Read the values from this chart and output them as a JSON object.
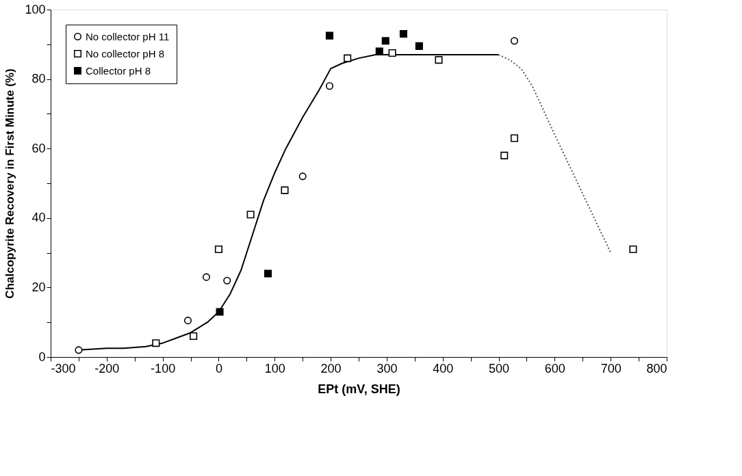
{
  "chart_data": {
    "type": "scatter",
    "xlabel": "EPt (mV, SHE)",
    "ylabel": "Chalcopyrite Recovery in First Minute (%)",
    "xlim": [
      -300,
      800
    ],
    "ylim": [
      0,
      100
    ],
    "xticks": [
      -300,
      {
        "value": -250,
        "label": null
      },
      -200,
      {
        "value": -150,
        "label": null
      },
      -100,
      {
        "value": -50,
        "label": null
      },
      0,
      {
        "value": 50,
        "label": null
      },
      100,
      {
        "value": 150,
        "label": null
      },
      200,
      {
        "value": 250,
        "label": null
      },
      300,
      {
        "value": 350,
        "label": null
      },
      400,
      {
        "value": 450,
        "label": null
      },
      500,
      {
        "value": 550,
        "label": null
      },
      600,
      {
        "value": 650,
        "label": null
      },
      700,
      {
        "value": 750,
        "label": null
      },
      800
    ],
    "yticks": [
      0,
      {
        "value": 10,
        "label": null
      },
      20,
      {
        "value": 30,
        "label": null
      },
      40,
      {
        "value": 50,
        "label": null
      },
      60,
      {
        "value": 70,
        "label": null
      },
      80,
      {
        "value": 90,
        "label": null
      },
      100
    ],
    "grid": false,
    "legend": "top left",
    "series": [
      {
        "name": "No collector pH 11",
        "type": "scatter",
        "marker": "circle",
        "color": "#ffffff",
        "x": [
          -250,
          -55,
          -22,
          15,
          150,
          198,
          528
        ],
        "values": [
          2,
          10.5,
          23,
          22,
          52,
          78,
          91
        ]
      },
      {
        "name": "No collector pH 8",
        "type": "scatter",
        "marker": "square",
        "color": "#ffffff",
        "x": [
          -112,
          -45,
          0,
          57,
          118,
          230,
          310,
          393,
          510,
          528,
          740
        ],
        "values": [
          4,
          6,
          31,
          41,
          48,
          86,
          87.5,
          85.5,
          58,
          63,
          31
        ]
      },
      {
        "name": "Collector pH 8",
        "type": "scatter",
        "marker": "square",
        "color": "#000000",
        "x": [
          2,
          88,
          198,
          287,
          298,
          330,
          358
        ],
        "values": [
          13,
          24,
          92.5,
          88,
          91,
          93,
          89.5
        ]
      },
      {
        "type": "line",
        "line_style": "solid",
        "color": "#000000",
        "x": [
          -250,
          -200,
          -170,
          -130,
          -100,
          -50,
          -20,
          0,
          20,
          40,
          60,
          80,
          100,
          120,
          150,
          180,
          200,
          220,
          250,
          280,
          320,
          400,
          500
        ],
        "values": [
          2,
          2.5,
          2.5,
          3,
          4,
          7,
          10,
          13,
          18,
          25,
          35,
          45,
          53,
          60,
          69,
          77,
          83,
          84.5,
          86,
          87,
          87,
          87,
          87
        ]
      },
      {
        "type": "line",
        "line_style": "dotted",
        "color": "#555555",
        "x": [
          500,
          520,
          540,
          560,
          600,
          650,
          700
        ],
        "values": [
          87,
          85.5,
          83,
          78,
          64,
          47,
          30
        ]
      }
    ]
  }
}
